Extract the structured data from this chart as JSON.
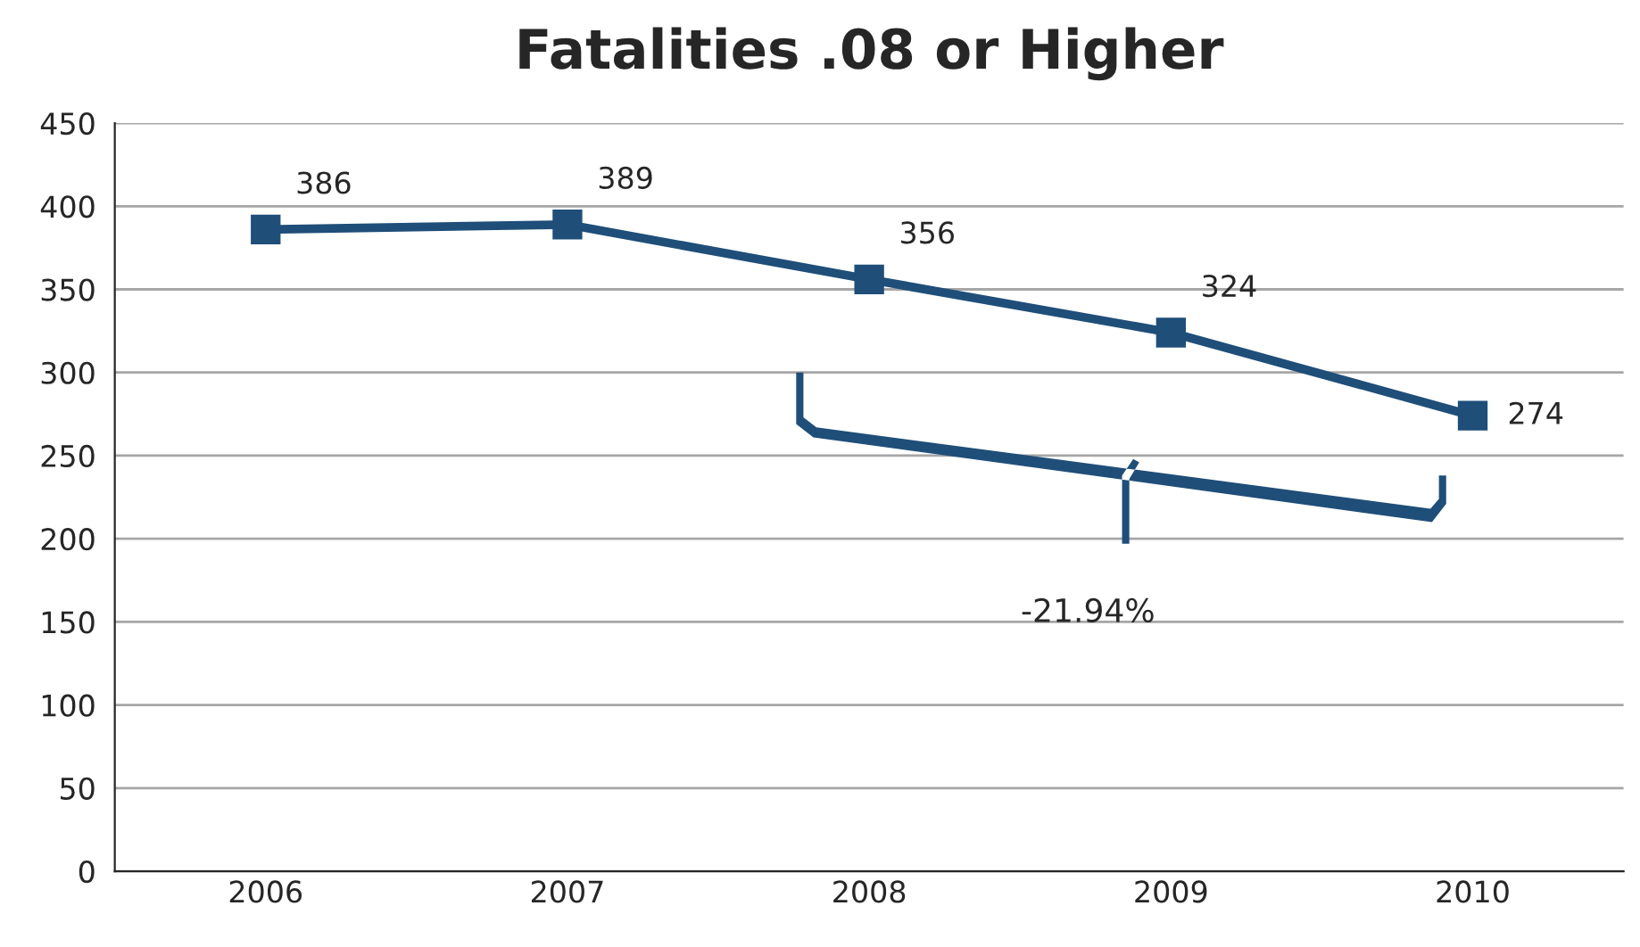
{
  "chart_data": {
    "type": "line",
    "title": "Fatalities .08 or Higher",
    "categories": [
      "2006",
      "2007",
      "2008",
      "2009",
      "2010"
    ],
    "series": [
      {
        "color": "#1f4e79",
        "values": [
          386,
          389,
          356,
          324,
          274
        ]
      }
    ],
    "ylim": [
      0,
      450
    ],
    "yticks": [
      0,
      50,
      100,
      150,
      200,
      250,
      300,
      350,
      400,
      450
    ],
    "grid": "y",
    "marker": "square",
    "line_style": "solid",
    "data_labels": true,
    "legend": false,
    "annotations": [
      "-21.94%"
    ]
  }
}
